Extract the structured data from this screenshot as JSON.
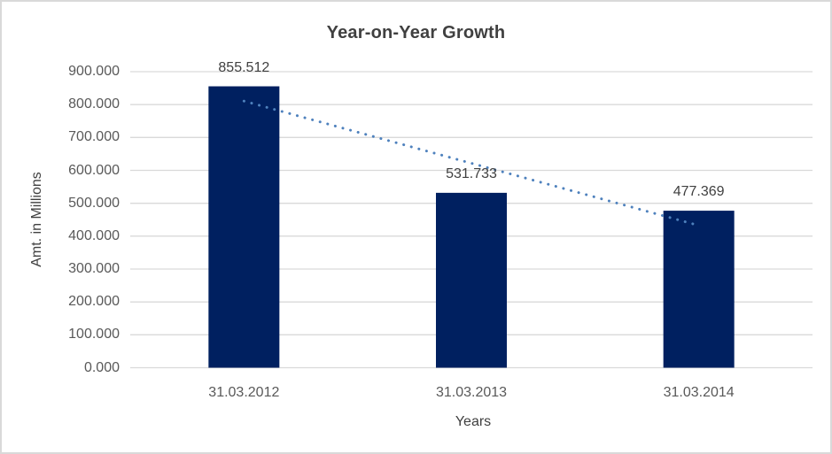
{
  "chart_data": {
    "type": "bar",
    "title": "Year-on-Year Growth",
    "categories": [
      "31.03.2012",
      "31.03.2013",
      "31.03.2014"
    ],
    "values": [
      855.512,
      531.733,
      477.369
    ],
    "data_labels": [
      "855.512",
      "531.733",
      "477.369"
    ],
    "xlabel": "Years",
    "ylabel": "Amt. in Millions",
    "ylim": [
      0,
      900
    ],
    "ytick_labels": [
      "0.000",
      "100.000",
      "200.000",
      "300.000",
      "400.000",
      "500.000",
      "600.000",
      "700.000",
      "800.000",
      "900.000"
    ],
    "grid": true,
    "legend": "none",
    "trendline": {
      "type": "linear",
      "style": "dotted",
      "color": "#4E81BD"
    },
    "colors": {
      "bar": "#002060",
      "trendline": "#4E81BD",
      "gridline": "#D9D9D9",
      "chart_border": "#D9D9D9",
      "title_text": "#404040",
      "axis_text": "#595959",
      "data_label_text": "#404040",
      "background": "#FFFFFF"
    }
  }
}
